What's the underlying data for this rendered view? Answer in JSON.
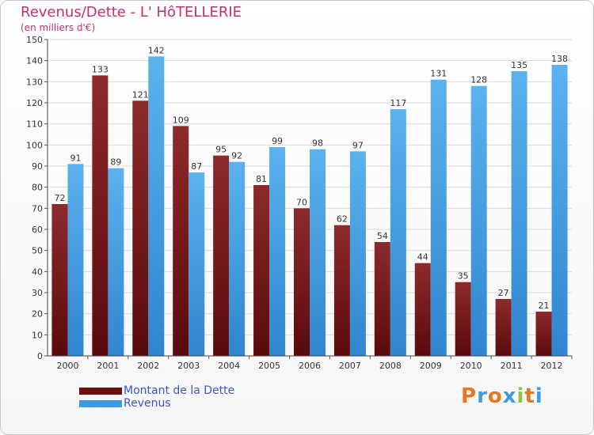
{
  "page": {
    "title": "Revenus/Dette - L' HôTELLERIE",
    "subtitle": "(en milliers d'€)"
  },
  "legend": {
    "items": [
      {
        "label": "Montant de la Dette",
        "color": "#6b0f12"
      },
      {
        "label": "Revenus",
        "color": "#3d9be0"
      }
    ]
  },
  "logo": {
    "letters": [
      "P",
      "r",
      "o",
      "x",
      "i",
      "t",
      "i"
    ],
    "colors": [
      "#e6781e",
      "#3d9be0",
      "#e6781e",
      "#3d9be0",
      "#8cc63f",
      "#e6781e",
      "#3d9be0"
    ]
  },
  "chart_data": {
    "type": "bar",
    "title": "Revenus/Dette - L' HôTELLERIE",
    "subtitle": "(en milliers d'€)",
    "categories": [
      "2000",
      "2001",
      "2002",
      "2003",
      "2004",
      "2005",
      "2006",
      "2007",
      "2008",
      "2009",
      "2010",
      "2011",
      "2012"
    ],
    "series": [
      {
        "name": "Montant de la Dette",
        "color": "#7a1a1c",
        "values": [
          72,
          133,
          121,
          109,
          95,
          81,
          70,
          62,
          54,
          44,
          35,
          27,
          21
        ]
      },
      {
        "name": "Revenus",
        "color": "#3d9be0",
        "values": [
          91,
          89,
          142,
          87,
          92,
          99,
          98,
          97,
          117,
          131,
          128,
          135,
          138
        ]
      }
    ],
    "ylim": [
      0,
      150
    ],
    "yticks": [
      0,
      10,
      20,
      30,
      40,
      50,
      60,
      70,
      80,
      90,
      100,
      110,
      120,
      130,
      140,
      150
    ],
    "grid": true,
    "legend_position": "bottom-left"
  }
}
